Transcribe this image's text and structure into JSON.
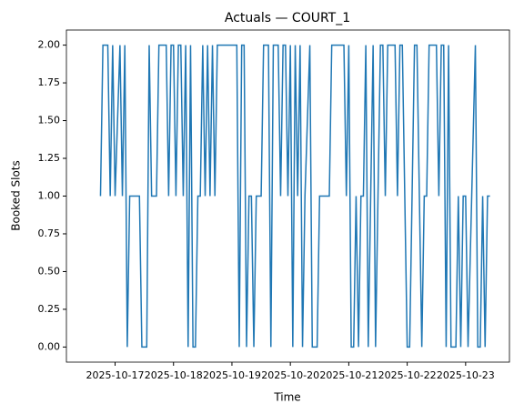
{
  "chart_data": {
    "type": "line",
    "title": "Actuals — COURT_1",
    "x_label": "Time",
    "y_label": "Booked Slots",
    "x": [
      "2025-10-16T18:00",
      "2025-10-16T19:00",
      "2025-10-16T21:00",
      "2025-10-16T22:00",
      "2025-10-16T23:00",
      "2025-10-17T00:00",
      "2025-10-17T02:00",
      "2025-10-17T03:00",
      "2025-10-17T04:00",
      "2025-10-17T05:00",
      "2025-10-17T06:00",
      "2025-10-17T10:00",
      "2025-10-17T11:00",
      "2025-10-17T13:00",
      "2025-10-17T14:00",
      "2025-10-17T15:00",
      "2025-10-17T17:00",
      "2025-10-17T18:00",
      "2025-10-17T21:00",
      "2025-10-17T22:00",
      "2025-10-17T23:00",
      "2025-10-18T00:00",
      "2025-10-18T01:00",
      "2025-10-18T02:00",
      "2025-10-18T03:00",
      "2025-10-18T04:00",
      "2025-10-18T05:00",
      "2025-10-18T06:00",
      "2025-10-18T07:00",
      "2025-10-18T08:00",
      "2025-10-18T09:00",
      "2025-10-18T10:00",
      "2025-10-18T11:00",
      "2025-10-18T12:00",
      "2025-10-18T13:00",
      "2025-10-18T14:00",
      "2025-10-18T15:00",
      "2025-10-18T16:00",
      "2025-10-18T17:00",
      "2025-10-18T18:00",
      "2025-10-19T02:00",
      "2025-10-19T03:00",
      "2025-10-19T04:00",
      "2025-10-19T05:00",
      "2025-10-19T06:00",
      "2025-10-19T07:00",
      "2025-10-19T08:00",
      "2025-10-19T09:00",
      "2025-10-19T10:00",
      "2025-10-19T12:00",
      "2025-10-19T13:00",
      "2025-10-19T15:00",
      "2025-10-19T16:00",
      "2025-10-19T17:00",
      "2025-10-19T19:00",
      "2025-10-19T20:00",
      "2025-10-19T21:00",
      "2025-10-19T22:00",
      "2025-10-19T23:00",
      "2025-10-20T00:00",
      "2025-10-20T01:00",
      "2025-10-20T02:00",
      "2025-10-20T03:00",
      "2025-10-20T04:00",
      "2025-10-20T05:00",
      "2025-10-20T06:00",
      "2025-10-20T08:00",
      "2025-10-20T09:00",
      "2025-10-20T11:00",
      "2025-10-20T12:00",
      "2025-10-20T16:00",
      "2025-10-20T17:00",
      "2025-10-20T22:00",
      "2025-10-20T23:00",
      "2025-10-21T00:00",
      "2025-10-21T01:00",
      "2025-10-21T02:00",
      "2025-10-21T03:00",
      "2025-10-21T04:00",
      "2025-10-21T05:00",
      "2025-10-21T06:00",
      "2025-10-21T07:00",
      "2025-10-21T08:00",
      "2025-10-21T09:00",
      "2025-10-21T10:00",
      "2025-10-21T11:00",
      "2025-10-21T12:00",
      "2025-10-21T13:00",
      "2025-10-21T14:00",
      "2025-10-21T15:00",
      "2025-10-21T16:00",
      "2025-10-21T19:00",
      "2025-10-21T20:00",
      "2025-10-21T21:00",
      "2025-10-21T22:00",
      "2025-10-21T23:00",
      "2025-10-22T00:00",
      "2025-10-22T01:00",
      "2025-10-22T02:00",
      "2025-10-22T03:00",
      "2025-10-22T04:00",
      "2025-10-22T05:00",
      "2025-10-22T06:00",
      "2025-10-22T07:00",
      "2025-10-22T08:00",
      "2025-10-22T09:00",
      "2025-10-22T12:00",
      "2025-10-22T13:00",
      "2025-10-22T14:00",
      "2025-10-22T15:00",
      "2025-10-22T16:00",
      "2025-10-22T17:00",
      "2025-10-22T18:00",
      "2025-10-22T20:00",
      "2025-10-22T21:00",
      "2025-10-22T22:00",
      "2025-10-22T23:00",
      "2025-10-23T00:00",
      "2025-10-23T01:00",
      "2025-10-23T04:00",
      "2025-10-23T05:00",
      "2025-10-23T06:00",
      "2025-10-23T07:00",
      "2025-10-23T08:00",
      "2025-10-23T09:00",
      "2025-10-23T10:00"
    ],
    "series": [
      {
        "name": "COURT_1",
        "color": "#1f77b4",
        "values": [
          1,
          2,
          2,
          1,
          2,
          1,
          2,
          1,
          2,
          0,
          1,
          1,
          0,
          0,
          2,
          1,
          1,
          2,
          2,
          1,
          2,
          2,
          1,
          2,
          2,
          1,
          2,
          0,
          2,
          0,
          0,
          1,
          1,
          2,
          1,
          2,
          1,
          2,
          1,
          2,
          2,
          0,
          2,
          2,
          0,
          1,
          1,
          0,
          1,
          1,
          2,
          2,
          0,
          2,
          2,
          1,
          2,
          2,
          1,
          2,
          0,
          2,
          1,
          2,
          0,
          1,
          2,
          0,
          0,
          1,
          1,
          2,
          2,
          1,
          2,
          0,
          0,
          1,
          0,
          1,
          1,
          2,
          0,
          1,
          2,
          0,
          1,
          2,
          2,
          1,
          2,
          2,
          1,
          2,
          2,
          1,
          0,
          0,
          1,
          2,
          2,
          1,
          0,
          1,
          1,
          2,
          2,
          1,
          2,
          2,
          0,
          2,
          0,
          0,
          1,
          0,
          1,
          1,
          0,
          2,
          0,
          0,
          1,
          0,
          1,
          1
        ]
      }
    ],
    "xlim": [
      "2025-10-16T04:00",
      "2025-10-23T18:00"
    ],
    "xticks": [
      "2025-10-17",
      "2025-10-18",
      "2025-10-19",
      "2025-10-20",
      "2025-10-21",
      "2025-10-22",
      "2025-10-23"
    ],
    "ylim": [
      -0.1,
      2.1
    ],
    "yticks": [
      {
        "value": 0,
        "label": "0.00"
      },
      {
        "value": 0.25,
        "label": "0.25"
      },
      {
        "value": 0.5,
        "label": "0.50"
      },
      {
        "value": 0.75,
        "label": "0.75"
      },
      {
        "value": 1,
        "label": "1.00"
      },
      {
        "value": 1.25,
        "label": "1.25"
      },
      {
        "value": 1.5,
        "label": "1.50"
      },
      {
        "value": 1.75,
        "label": "1.75"
      },
      {
        "value": 2,
        "label": "2.00"
      }
    ]
  }
}
